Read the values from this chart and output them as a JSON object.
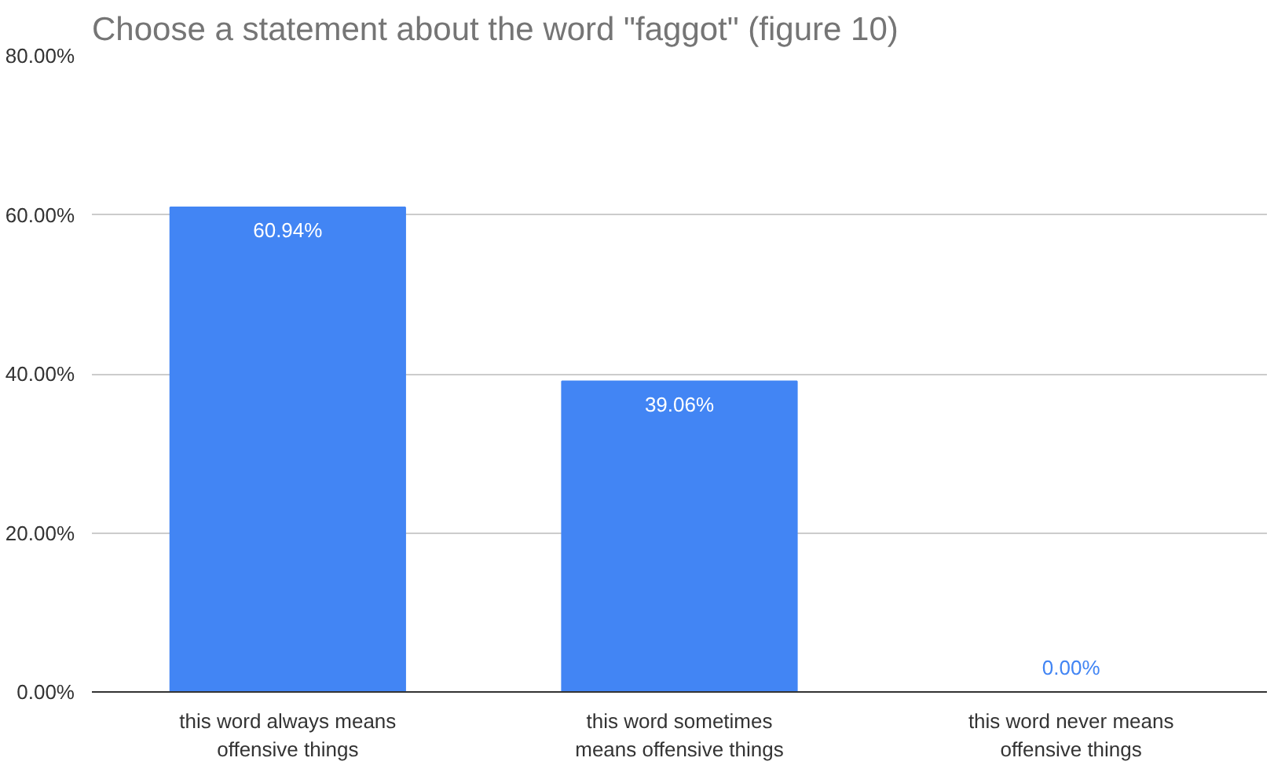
{
  "chart_data": {
    "type": "bar",
    "title": "Choose a statement about the word \"faggot\" (figure 10)",
    "categories": [
      "this word always means offensive things",
      "this word sometimes means offensive things",
      "this word never means offensive things"
    ],
    "values": [
      60.94,
      39.06,
      0
    ],
    "color": "#4285f4",
    "ylim": [
      0,
      80
    ],
    "yticks": [
      {
        "value": 0,
        "label": "0.00%"
      },
      {
        "value": 20,
        "label": "20.00%"
      },
      {
        "value": 40,
        "label": "40.00%"
      },
      {
        "value": 60,
        "label": "60.00%"
      },
      {
        "value": 80,
        "label": "80.00%"
      }
    ],
    "value_labels": [
      "60.94%",
      "39.06%",
      "0.00%"
    ],
    "grid": "y"
  }
}
